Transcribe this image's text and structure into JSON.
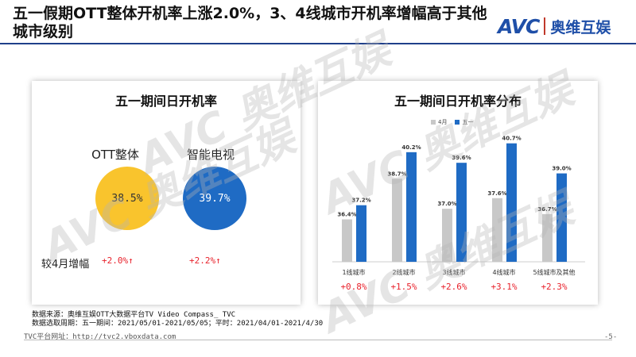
{
  "header": {
    "title": "五一假期OTT整体开机率上涨2.0%，3、4线城市开机率增幅高于其他城市级别",
    "logo_text": "AVC",
    "logo_cn": "奥维互娱"
  },
  "left_panel": {
    "title": "五一期间日开机率",
    "items": [
      {
        "label": "OTT整体",
        "value": "38.5%",
        "growth": "+2.0%↑",
        "color": "#f9c42d"
      },
      {
        "label": "智能电视",
        "value": "39.7%",
        "growth": "+2.2%↑",
        "color": "#1f6bc4"
      }
    ],
    "growth_label": "较4月增幅"
  },
  "chart_data": {
    "type": "bar",
    "title": "五一期间日开机率分布",
    "categories": [
      "1线城市",
      "2线城市",
      "3线城市",
      "4线城市",
      "5线城市及其他"
    ],
    "series": [
      {
        "name": "4月",
        "values": [
          36.4,
          38.7,
          37.0,
          37.6,
          36.7
        ],
        "labels": [
          "36.4%",
          "38.7%",
          "37.0%",
          "37.6%",
          "36.7%"
        ],
        "color": "#c8c8c8"
      },
      {
        "name": "五一",
        "values": [
          37.2,
          40.2,
          39.6,
          40.7,
          39.0
        ],
        "labels": [
          "37.2%",
          "40.2%",
          "39.6%",
          "40.7%",
          "39.0%"
        ],
        "color": "#1f6bc4"
      }
    ],
    "growth": [
      "+0.8%",
      "+1.5%",
      "+2.6%",
      "+3.1%",
      "+2.3%"
    ],
    "ylim": [
      34,
      41
    ],
    "legend_position": "top",
    "grid": false
  },
  "footer": {
    "source": "数据来源：奥维互娱OTT大数据平台TV Video Compass_ TVC",
    "period": "数据选取周期：五一期间：2021/05/01-2021/05/05；平时：2021/04/01-2021/4/30",
    "url": "TVC平台网址：http://tvc2.vboxdata.com",
    "page": "-5-"
  },
  "watermark": "AVC 奥维互娱"
}
